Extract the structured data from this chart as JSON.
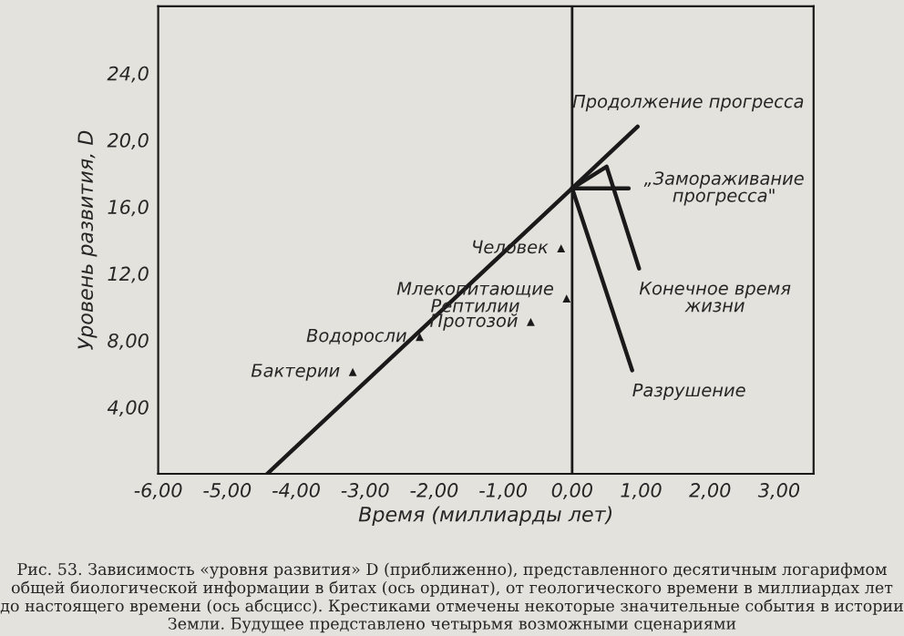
{
  "chart_data": {
    "type": "line",
    "xlabel": "Время (миллиарды лет)",
    "ylabel": "Уровень развития, D",
    "xlim": [
      -6,
      3.5
    ],
    "ylim": [
      0,
      28
    ],
    "xticks": [
      {
        "value": -6,
        "label": "-6,00"
      },
      {
        "value": -5,
        "label": "-5,00"
      },
      {
        "value": -4,
        "label": "-4,00"
      },
      {
        "value": -3,
        "label": "-3,00"
      },
      {
        "value": -2,
        "label": "-2,00"
      },
      {
        "value": -1,
        "label": "-1,00"
      },
      {
        "value": 0,
        "label": "0,00"
      },
      {
        "value": 1,
        "label": "1,00"
      },
      {
        "value": 2,
        "label": "2,00"
      },
      {
        "value": 3,
        "label": "3,00"
      }
    ],
    "yticks": [
      {
        "value": 4,
        "label": "4,00"
      },
      {
        "value": 8,
        "label": "8,00"
      },
      {
        "value": 12,
        "label": "12,0"
      },
      {
        "value": 16,
        "label": "16,0"
      },
      {
        "value": 20,
        "label": "20,0"
      },
      {
        "value": 24,
        "label": "24,0"
      }
    ],
    "series": [
      {
        "color": "#1a1a1a",
        "x": [
          -4.42,
          0,
          0.95
        ],
        "values": [
          0,
          17.1,
          20.8
        ]
      },
      {
        "color": "#1a1a1a",
        "x": [
          0,
          0.82
        ],
        "values": [
          17.1,
          17.1
        ]
      },
      {
        "color": "#1a1a1a",
        "x": [
          0,
          0.5,
          0.97
        ],
        "values": [
          17.1,
          18.4,
          12.3
        ]
      },
      {
        "color": "#1a1a1a",
        "x": [
          0,
          0.87
        ],
        "values": [
          17.1,
          6.2
        ]
      },
      {
        "type": "scatter",
        "color": "#1a1a1a",
        "marker": "triangle",
        "x": [
          -3.18,
          -2.21,
          -0.6,
          -0.08,
          -0.16
        ],
        "values": [
          6.1,
          8.2,
          9.1,
          10.5,
          13.5
        ]
      }
    ],
    "ref_lines": [
      {
        "axis": "x",
        "value": 0,
        "color": "#1a1a1a"
      }
    ],
    "grid": false,
    "legend": false,
    "marker": "none",
    "line_style": "solid",
    "annotations": [
      {
        "text": "Бактерии",
        "x": -3.18,
        "y": 6.1
      },
      {
        "text": "Водоросли",
        "x": -2.21,
        "y": 8.2
      },
      {
        "text": "Протозой",
        "x": -0.6,
        "y": 9.1
      },
      {
        "text": "Млекопитающие\nРептилии",
        "x": -0.08,
        "y": 10.5
      },
      {
        "text": "Человек",
        "x": -0.16,
        "y": 13.5
      },
      {
        "text": "Продолжение прогресса",
        "x": 0.95,
        "y": 20.8
      },
      {
        "text": "„Замораживание\nпрогресса\"",
        "x": 0.82,
        "y": 17.1
      },
      {
        "text": "Конечное время\nжизни",
        "x": 0.97,
        "y": 12.3
      },
      {
        "text": "Разрушение",
        "x": 0.87,
        "y": 6.2
      },
      "Рис. 53. Зависимость «уровня развития» D (приближенно), представленного десятичным логарифмом общей биологической информации в битах (ось ординат), от геологического времени в миллиардах лет до настоящего времени (ось абсцисс). Крестиками отмечены некоторые значительные события в истории Земли. Будущее представлено четырьмя возможными сценариями"
    ]
  }
}
